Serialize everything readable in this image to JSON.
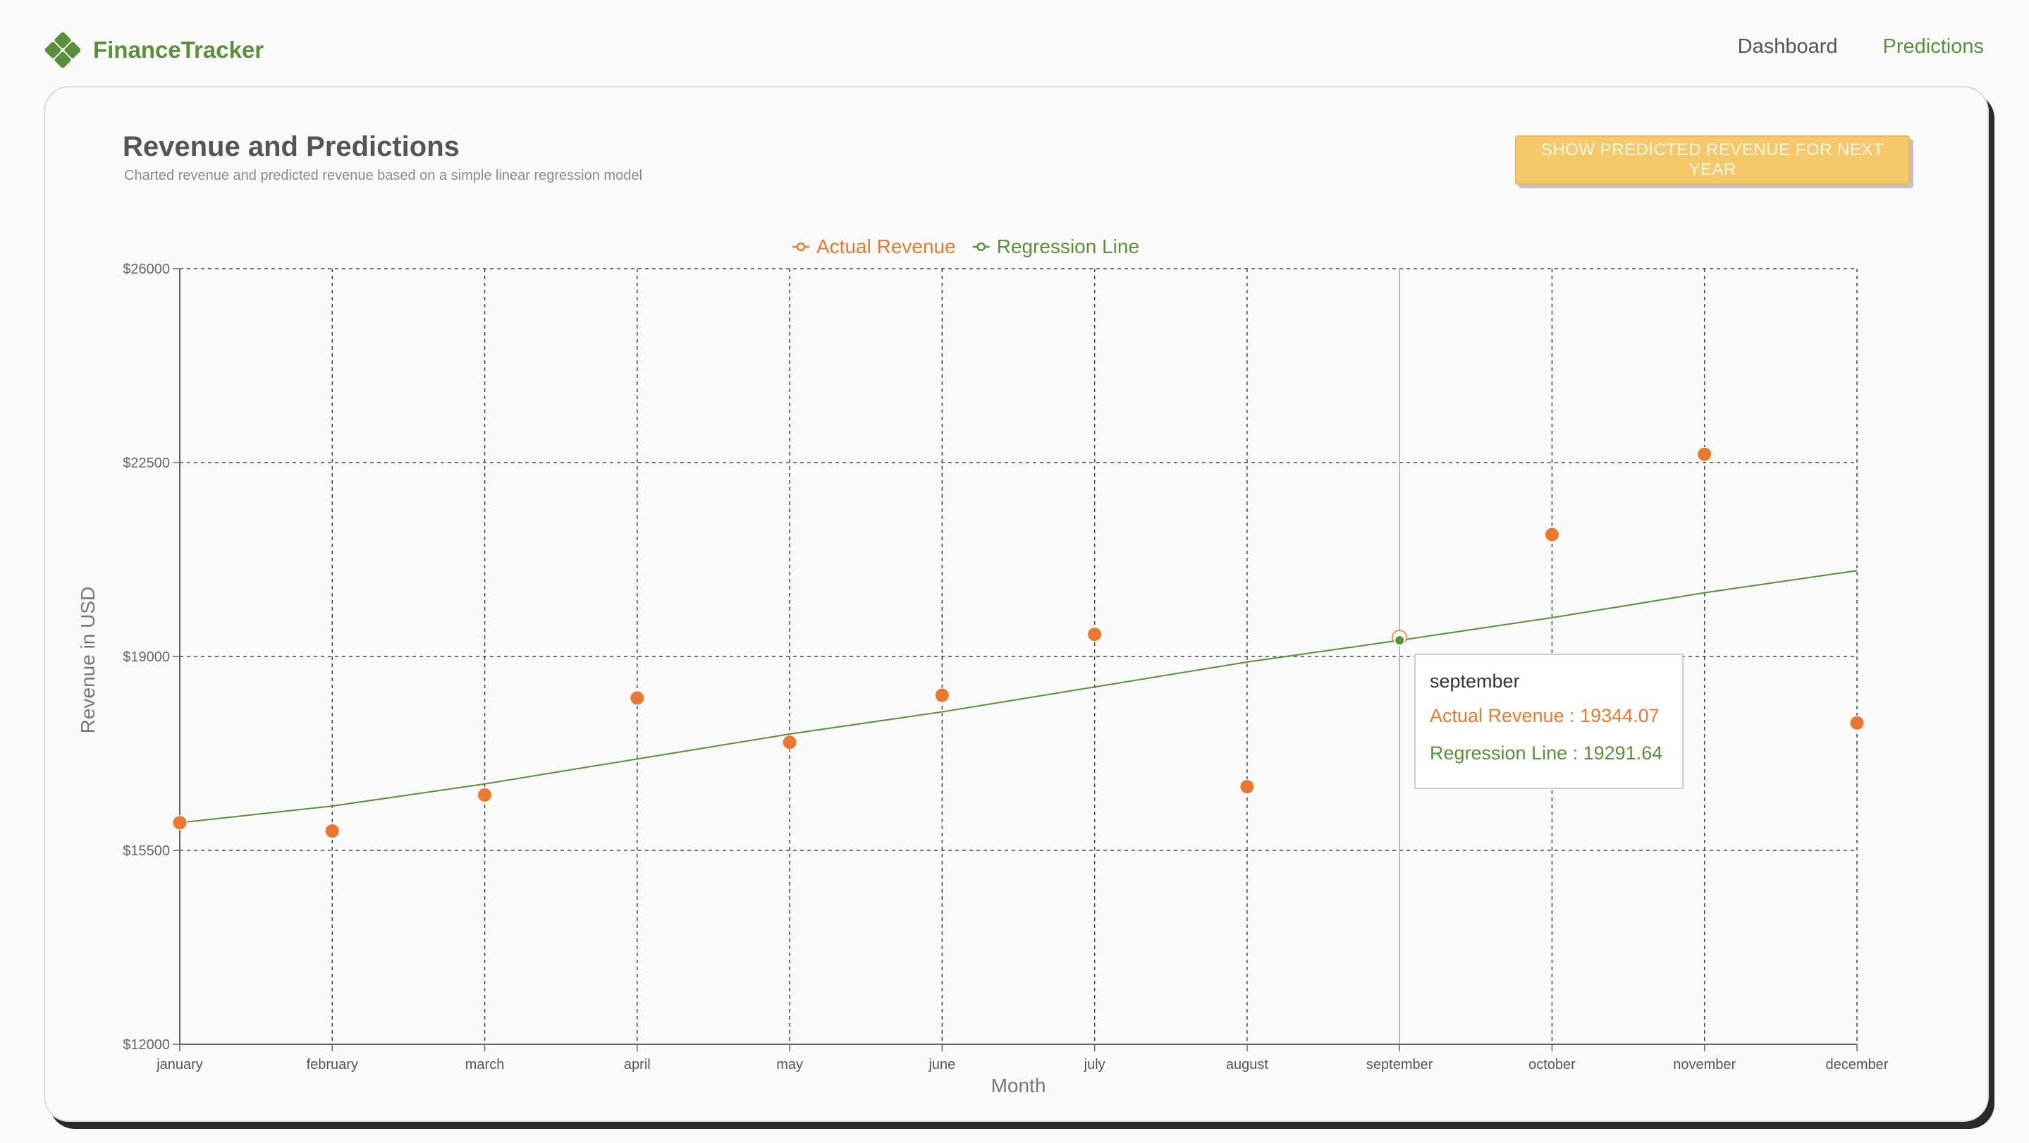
{
  "header": {
    "brand": "FinanceTracker",
    "logo_icon": "clover-logo-icon",
    "nav": [
      {
        "label": "Dashboard",
        "active": false
      },
      {
        "label": "Predictions",
        "active": true
      }
    ]
  },
  "card": {
    "title": "Revenue and Predictions",
    "subtitle": "Charted revenue and predicted revenue based on a simple linear regression model",
    "button_label": "SHOW PREDICTED REVENUE FOR NEXT YEAR"
  },
  "colors": {
    "brand": "#5b8f3c",
    "actual": "#e8792f",
    "regression": "#5b8f3c",
    "button": "#f5c96a"
  },
  "chart_data": {
    "type": "line",
    "xlabel": "Month",
    "ylabel": "Revenue in USD",
    "categories": [
      "january",
      "february",
      "march",
      "april",
      "may",
      "june",
      "july",
      "august",
      "september",
      "october",
      "november",
      "december"
    ],
    "ylim": [
      12000,
      26000
    ],
    "yticks": [
      12000,
      15500,
      19000,
      22500,
      26000
    ],
    "ytick_labels": [
      "$12000",
      "$15500",
      "$19000",
      "$22500",
      "$26000"
    ],
    "grid": true,
    "legend_position": "top-center",
    "series": [
      {
        "name": "Actual Revenue",
        "mode": "markers",
        "color": "#e8792f",
        "values": [
          16000,
          15850,
          16500,
          18250,
          17450,
          18300,
          19400,
          16650,
          19344.07,
          21200,
          22650,
          17800
        ]
      },
      {
        "name": "Regression Line",
        "mode": "line",
        "color": "#5b8f3c",
        "values": [
          16000,
          16300,
          16700,
          17150,
          17600,
          18000,
          18450,
          18900,
          19291.64,
          19700,
          20150,
          20550
        ]
      }
    ],
    "tooltip": {
      "category": "september",
      "rows": [
        {
          "series": "Actual Revenue",
          "text": "Actual Revenue : 19344.07"
        },
        {
          "series": "Regression Line",
          "text": "Regression Line : 19291.64"
        }
      ]
    }
  }
}
